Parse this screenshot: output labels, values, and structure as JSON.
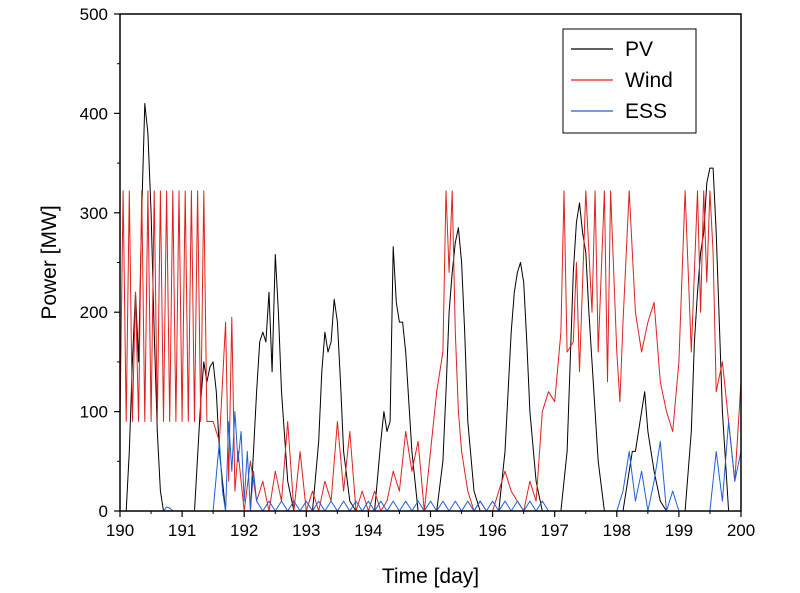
{
  "chart_data": {
    "type": "line",
    "title": "",
    "xlabel": "Time [day]",
    "ylabel": "Power [MW]",
    "xlim": [
      190,
      200
    ],
    "ylim": [
      0,
      500
    ],
    "x_ticks": [
      190,
      191,
      192,
      193,
      194,
      195,
      196,
      197,
      198,
      199,
      200
    ],
    "y_ticks": [
      0,
      100,
      200,
      300,
      400,
      500
    ],
    "x_tick_labels": [
      "190",
      "191",
      "192",
      "193",
      "194",
      "195",
      "196",
      "197",
      "198",
      "199",
      "200"
    ],
    "y_tick_labels": [
      "0",
      "100",
      "200",
      "300",
      "400",
      "500"
    ],
    "grid": false,
    "legend_position": "top-right",
    "series": [
      {
        "name": "PV",
        "color": "#000000",
        "x": [
          190.0,
          190.1,
          190.15,
          190.2,
          190.25,
          190.3,
          190.35,
          190.4,
          190.45,
          190.5,
          190.55,
          190.6,
          190.65,
          190.7,
          190.8,
          191.0,
          191.2,
          191.3,
          191.35,
          191.4,
          191.45,
          191.5,
          191.55,
          191.6,
          191.7,
          192.0,
          192.1,
          192.2,
          192.25,
          192.3,
          192.35,
          192.4,
          192.45,
          192.5,
          192.55,
          192.6,
          192.7,
          192.8,
          193.0,
          193.1,
          193.2,
          193.25,
          193.3,
          193.35,
          193.4,
          193.45,
          193.5,
          193.55,
          193.6,
          193.7,
          193.8,
          194.0,
          194.1,
          194.2,
          194.25,
          194.3,
          194.35,
          194.4,
          194.45,
          194.5,
          194.55,
          194.6,
          194.7,
          194.8,
          195.0,
          195.1,
          195.2,
          195.25,
          195.3,
          195.35,
          195.4,
          195.45,
          195.5,
          195.55,
          195.6,
          195.7,
          195.8,
          196.0,
          196.1,
          196.2,
          196.25,
          196.3,
          196.35,
          196.4,
          196.45,
          196.5,
          196.55,
          196.6,
          196.7,
          196.8,
          197.0,
          197.1,
          197.2,
          197.25,
          197.3,
          197.35,
          197.4,
          197.45,
          197.5,
          197.55,
          197.6,
          197.7,
          197.8,
          198.0,
          198.1,
          198.2,
          198.25,
          198.3,
          198.35,
          198.4,
          198.45,
          198.5,
          198.55,
          198.6,
          198.7,
          198.8,
          199.0,
          199.1,
          199.2,
          199.25,
          199.3,
          199.35,
          199.4,
          199.45,
          199.5,
          199.55,
          199.6,
          199.7,
          199.8,
          200.0
        ],
        "y": [
          0,
          0,
          60,
          150,
          220,
          150,
          300,
          410,
          380,
          300,
          180,
          80,
          20,
          0,
          0,
          0,
          0,
          110,
          150,
          130,
          145,
          150,
          120,
          60,
          0,
          0,
          0,
          120,
          170,
          180,
          170,
          220,
          140,
          258,
          200,
          120,
          30,
          0,
          0,
          0,
          70,
          140,
          180,
          160,
          170,
          213,
          190,
          130,
          60,
          10,
          0,
          0,
          0,
          70,
          100,
          80,
          90,
          266,
          210,
          190,
          190,
          160,
          60,
          0,
          0,
          0,
          50,
          120,
          200,
          240,
          270,
          285,
          250,
          180,
          90,
          20,
          0,
          0,
          0,
          60,
          120,
          180,
          220,
          240,
          250,
          230,
          170,
          100,
          30,
          0,
          0,
          0,
          60,
          150,
          240,
          290,
          310,
          280,
          260,
          200,
          150,
          50,
          0,
          0,
          0,
          40,
          60,
          60,
          80,
          100,
          120,
          80,
          60,
          40,
          10,
          0,
          0,
          0,
          80,
          170,
          220,
          260,
          280,
          330,
          345,
          345,
          280,
          100,
          0,
          0
        ]
      },
      {
        "name": "Wind",
        "color": "#e02020",
        "x": [
          190.0,
          190.05,
          190.1,
          190.15,
          190.2,
          190.25,
          190.3,
          190.35,
          190.4,
          190.45,
          190.5,
          190.55,
          190.6,
          190.65,
          190.7,
          190.75,
          190.8,
          190.85,
          190.9,
          190.95,
          191.0,
          191.05,
          191.1,
          191.15,
          191.2,
          191.25,
          191.3,
          191.35,
          191.4,
          191.5,
          191.6,
          191.7,
          191.75,
          191.8,
          191.85,
          191.9,
          192.0,
          192.1,
          192.2,
          192.3,
          192.4,
          192.5,
          192.6,
          192.7,
          192.8,
          192.9,
          193.0,
          193.1,
          193.2,
          193.3,
          193.4,
          193.5,
          193.6,
          193.7,
          193.8,
          193.9,
          194.0,
          194.1,
          194.2,
          194.3,
          194.4,
          194.5,
          194.6,
          194.7,
          194.8,
          194.9,
          195.0,
          195.1,
          195.2,
          195.25,
          195.3,
          195.35,
          195.4,
          195.45,
          195.5,
          195.6,
          195.7,
          195.8,
          195.9,
          196.0,
          196.1,
          196.2,
          196.3,
          196.4,
          196.5,
          196.6,
          196.7,
          196.8,
          196.9,
          197.0,
          197.1,
          197.15,
          197.2,
          197.3,
          197.35,
          197.4,
          197.5,
          197.6,
          197.65,
          197.7,
          197.8,
          197.85,
          197.9,
          198.0,
          198.05,
          198.1,
          198.2,
          198.3,
          198.4,
          198.5,
          198.6,
          198.7,
          198.8,
          198.9,
          199.0,
          199.1,
          199.2,
          199.3,
          199.35,
          199.4,
          199.45,
          199.5,
          199.55,
          199.6,
          199.7,
          199.8,
          199.9,
          200.0
        ],
        "y": [
          90,
          322,
          90,
          322,
          90,
          220,
          90,
          322,
          90,
          322,
          90,
          322,
          90,
          322,
          90,
          322,
          90,
          322,
          90,
          322,
          90,
          322,
          90,
          322,
          90,
          322,
          90,
          322,
          90,
          90,
          70,
          190,
          30,
          195,
          20,
          60,
          0,
          50,
          10,
          30,
          0,
          40,
          10,
          90,
          0,
          60,
          0,
          20,
          0,
          30,
          10,
          90,
          20,
          80,
          0,
          20,
          0,
          20,
          0,
          10,
          40,
          20,
          80,
          40,
          70,
          0,
          60,
          120,
          160,
          322,
          240,
          322,
          180,
          100,
          60,
          20,
          0,
          10,
          0,
          0,
          20,
          40,
          20,
          10,
          0,
          30,
          10,
          100,
          120,
          110,
          180,
          322,
          160,
          170,
          250,
          140,
          322,
          200,
          322,
          160,
          322,
          130,
          322,
          160,
          110,
          190,
          322,
          200,
          160,
          190,
          210,
          130,
          100,
          80,
          150,
          322,
          160,
          322,
          200,
          322,
          230,
          322,
          260,
          120,
          150,
          90,
          30,
          130
        ]
      },
      {
        "name": "ESS",
        "color": "#1f5fd6",
        "x": [
          190.0,
          190.5,
          190.7,
          190.75,
          190.8,
          190.85,
          191.0,
          191.5,
          191.6,
          191.65,
          191.7,
          191.75,
          191.8,
          191.85,
          191.9,
          191.95,
          192.0,
          192.05,
          192.1,
          192.15,
          192.2,
          192.3,
          192.4,
          192.5,
          192.6,
          192.7,
          192.8,
          192.9,
          193.0,
          193.1,
          193.2,
          193.3,
          193.4,
          193.5,
          193.6,
          193.7,
          193.8,
          193.9,
          194.0,
          194.1,
          194.2,
          194.3,
          194.4,
          194.5,
          194.6,
          194.7,
          194.8,
          194.9,
          195.0,
          195.1,
          195.2,
          195.3,
          195.4,
          195.5,
          195.6,
          195.7,
          195.8,
          195.9,
          196.0,
          196.1,
          196.2,
          196.3,
          196.4,
          196.5,
          196.6,
          196.7,
          196.8,
          196.9,
          197.0,
          197.5,
          198.0,
          198.1,
          198.2,
          198.3,
          198.4,
          198.5,
          198.6,
          198.7,
          198.8,
          198.9,
          199.0,
          199.5,
          199.6,
          199.7,
          199.8,
          199.9,
          200.0
        ],
        "y": [
          0,
          0,
          0,
          4,
          3,
          0,
          0,
          0,
          70,
          20,
          0,
          90,
          40,
          100,
          50,
          80,
          10,
          60,
          0,
          40,
          10,
          0,
          10,
          0,
          10,
          0,
          10,
          0,
          10,
          0,
          10,
          0,
          10,
          0,
          10,
          0,
          10,
          0,
          10,
          0,
          10,
          0,
          10,
          0,
          10,
          0,
          10,
          0,
          10,
          0,
          10,
          0,
          10,
          0,
          10,
          0,
          10,
          0,
          10,
          0,
          10,
          0,
          10,
          0,
          10,
          0,
          10,
          0,
          0,
          0,
          0,
          20,
          60,
          10,
          40,
          0,
          30,
          70,
          0,
          20,
          0,
          0,
          60,
          10,
          90,
          30,
          60
        ]
      }
    ]
  }
}
